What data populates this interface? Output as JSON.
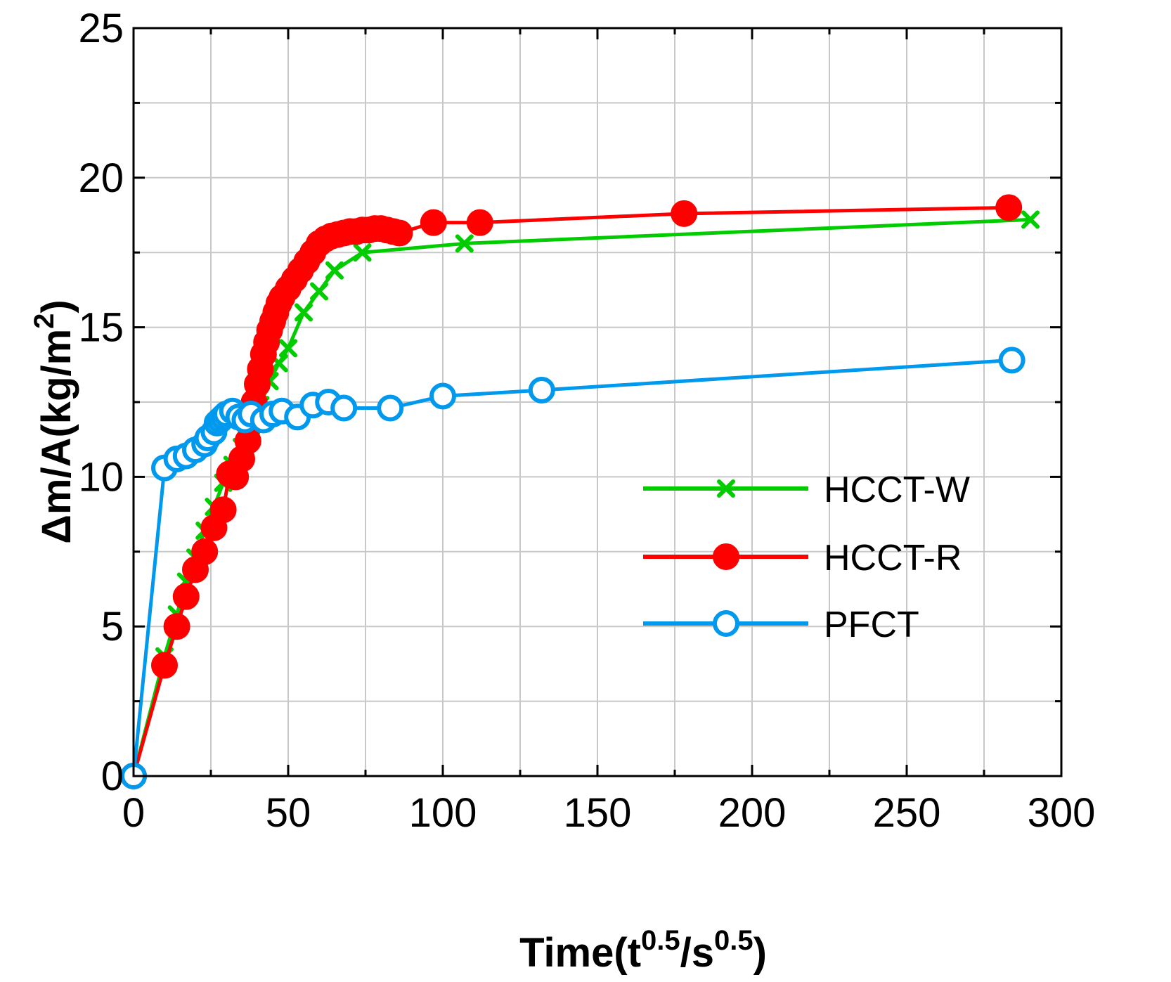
{
  "chart_data": {
    "type": "line",
    "title": "",
    "xlabel": {
      "main": "Time(t",
      "sup1": "0.5",
      "mid": "/s",
      "sup2": "0.5",
      "end": ")"
    },
    "ylabel": {
      "main": "Δm/A(kg/m",
      "sup": "2",
      "end": ")"
    },
    "xlim": [
      0,
      300
    ],
    "ylim": [
      0,
      25
    ],
    "xticks": [
      0,
      50,
      100,
      150,
      200,
      250,
      300
    ],
    "yticks": [
      0,
      5,
      10,
      15,
      20,
      25
    ],
    "grid": true,
    "legend_position": "right",
    "series": [
      {
        "name": "HCCT-W",
        "color": "#00cc00",
        "marker": "x",
        "x": [
          0,
          10,
          14,
          17,
          20,
          23,
          26,
          29,
          32,
          35,
          38,
          41,
          44,
          47,
          50,
          55,
          60,
          65,
          74,
          107,
          290
        ],
        "y": [
          0,
          4.0,
          5.4,
          6.5,
          7.3,
          8.2,
          9.0,
          9.8,
          10.4,
          11.0,
          11.7,
          12.4,
          13.2,
          13.8,
          14.3,
          15.5,
          16.2,
          16.9,
          17.5,
          17.8,
          18.6
        ]
      },
      {
        "name": "HCCT-R",
        "color": "#ff0000",
        "marker": "filled-circle",
        "x": [
          0,
          10,
          14,
          17,
          20,
          23,
          26,
          29,
          31,
          33,
          35,
          37,
          38,
          39,
          40,
          41,
          42,
          43,
          44,
          45,
          46,
          47,
          48,
          50,
          52,
          54,
          56,
          58,
          60,
          62,
          64,
          66,
          68,
          70,
          72,
          74,
          76,
          78,
          80,
          82,
          84,
          86,
          97,
          112,
          178,
          283
        ],
        "y": [
          0,
          3.7,
          5.0,
          6.0,
          6.9,
          7.5,
          8.3,
          8.9,
          10.1,
          10.0,
          10.6,
          11.2,
          12.0,
          12.5,
          13.1,
          13.6,
          14.1,
          14.5,
          14.9,
          15.2,
          15.5,
          15.8,
          16.0,
          16.3,
          16.6,
          16.9,
          17.2,
          17.5,
          17.8,
          17.95,
          18.05,
          18.1,
          18.15,
          18.2,
          18.2,
          18.25,
          18.25,
          18.3,
          18.3,
          18.25,
          18.2,
          18.15,
          18.5,
          18.5,
          18.8,
          19.0
        ]
      },
      {
        "name": "PFCT",
        "color": "#0099ee",
        "marker": "open-circle",
        "x": [
          0,
          10,
          14,
          17,
          20,
          23,
          24,
          26,
          27,
          28,
          29,
          30,
          32,
          34,
          36,
          38,
          42,
          45,
          48,
          53,
          58,
          63,
          68,
          83,
          100,
          132,
          284
        ],
        "y": [
          0,
          10.3,
          10.6,
          10.7,
          10.9,
          11.1,
          11.3,
          11.5,
          11.8,
          11.9,
          12.0,
          12.1,
          12.2,
          12.0,
          11.9,
          12.1,
          11.9,
          12.1,
          12.2,
          12.0,
          12.4,
          12.5,
          12.3,
          12.3,
          12.7,
          12.9,
          13.9
        ]
      }
    ]
  }
}
